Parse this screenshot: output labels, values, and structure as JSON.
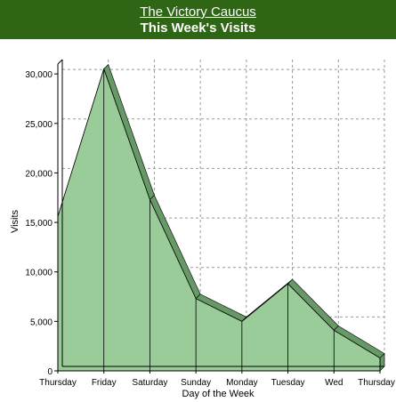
{
  "header": {
    "link_text": "The Victory Caucus",
    "title": "This Week's Visits"
  },
  "colors": {
    "header_bg": "#2e6615",
    "area_fill": "#99cc99",
    "area_top": "#669966",
    "grid": "#999999"
  },
  "chart_data": {
    "type": "area",
    "title": "This Week's Visits",
    "xlabel": "Day of the Week",
    "ylabel": "Visits",
    "categories": [
      "Thursday",
      "Friday",
      "Saturday",
      "Sunday",
      "Monday",
      "Tuesday",
      "Wed",
      "Thursday"
    ],
    "series": [
      {
        "values": [
          15600,
          30500,
          17300,
          7300,
          5000,
          8800,
          4100,
          1300
        ]
      }
    ],
    "ylim": [
      0,
      31000
    ],
    "yticks": [
      0,
      5000,
      10000,
      15000,
      20000,
      25000,
      30000
    ],
    "ytick_labels": [
      "0",
      "5,000",
      "10,000",
      "15,000",
      "20,000",
      "25,000",
      "30,000"
    ],
    "grid": true,
    "legend": "none",
    "style": "3d"
  }
}
